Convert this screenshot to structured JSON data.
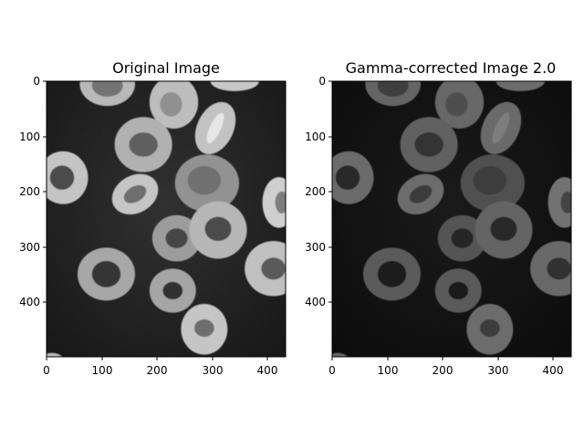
{
  "panels": [
    {
      "title": "Original Image",
      "gamma": 1.0,
      "x_ticks": [
        "0",
        "100",
        "200",
        "300",
        "400"
      ],
      "y_ticks": [
        "0",
        "100",
        "200",
        "300",
        "400"
      ]
    },
    {
      "title": "Gamma-corrected Image 2.0",
      "gamma": 2.0,
      "x_ticks": [
        "0",
        "100",
        "200",
        "300",
        "400"
      ],
      "y_ticks": [
        "0",
        "100",
        "200",
        "300",
        "400"
      ]
    }
  ],
  "subject": "red blood cells micrograph",
  "colormap": "gray"
}
